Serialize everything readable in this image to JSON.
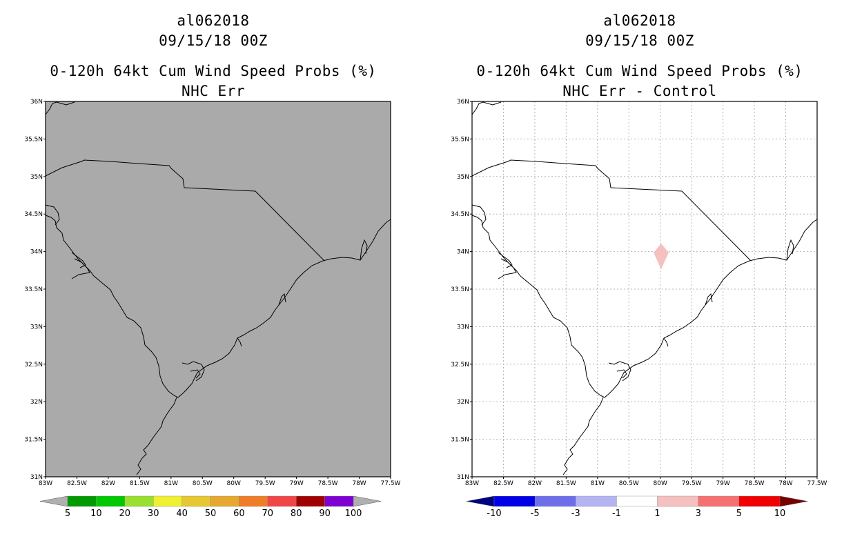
{
  "storm_id": "al062018",
  "datetime": "09/15/18 00Z",
  "panels": [
    {
      "title_line1": "0-120h 64kt Cum Wind Speed Probs (%)",
      "title_line2": "NHC Err",
      "map_fill": "#aaaaaa",
      "colorbar": {
        "labels": [
          "5",
          "10",
          "20",
          "30",
          "40",
          "50",
          "60",
          "70",
          "80",
          "90",
          "100"
        ],
        "colors": [
          "#009a00",
          "#00c800",
          "#9ae030",
          "#f0f032",
          "#e6c832",
          "#e6a830",
          "#f07d28",
          "#f04646",
          "#a00000",
          "#7e00d2"
        ],
        "end_left": "#b0b0b0",
        "end_right": "#b0b0b0"
      }
    },
    {
      "title_line1": "0-120h 64kt Cum Wind Speed Probs (%)",
      "title_line2": "NHC Err - Control",
      "map_fill": "#ffffff",
      "feature_color": "#f5c0c0",
      "colorbar": {
        "labels": [
          "-10",
          "-5",
          "-3",
          "-1",
          "1",
          "3",
          "5",
          "10"
        ],
        "colors": [
          "#0000e6",
          "#6e6eeb",
          "#b4b4f5",
          "#ffffff",
          "#f5c0c0",
          "#f57070",
          "#f00000"
        ],
        "end_left": "#000082",
        "end_right": "#780000"
      }
    }
  ],
  "axes": {
    "lon_labels": [
      "83W",
      "82.5W",
      "82W",
      "81.5W",
      "81W",
      "80.5W",
      "80W",
      "79.5W",
      "79W",
      "78.5W",
      "78W",
      "77.5W"
    ],
    "lat_labels": [
      "36N",
      "35.5N",
      "35N",
      "34.5N",
      "34N",
      "33.5N",
      "33N",
      "32.5N",
      "32N",
      "31.5N",
      "31N"
    ]
  }
}
